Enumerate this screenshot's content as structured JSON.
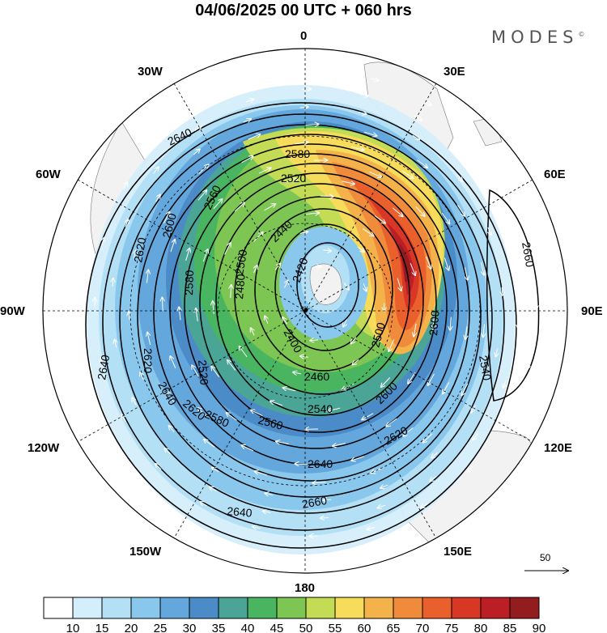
{
  "title": "04/06/2025  00 UTC  + 060 hrs",
  "brand": "MODES",
  "brand_mark": "©",
  "lon_labels": {
    "n": "0",
    "ne": "30E",
    "e1": "60E",
    "e": "90E",
    "e2": "120E",
    "se": "150E",
    "s": "180",
    "sw": "150W",
    "w2": "120W",
    "w": "90W",
    "w1": "60W",
    "nw": "30W"
  },
  "contour_labels": [
    "2640",
    "2580",
    "2520",
    "2560",
    "2600",
    "2620",
    "2500",
    "2440",
    "2420",
    "2480",
    "2580",
    "2620",
    "2640",
    "2400",
    "2520",
    "2460",
    "2500",
    "2600",
    "2640",
    "2620",
    "2580",
    "2540",
    "2560",
    "2600",
    "2620",
    "2640",
    "2640",
    "2660",
    "2660",
    "2540"
  ],
  "vector_scale": "50",
  "colorbar": {
    "ticks": [
      "10",
      "15",
      "20",
      "25",
      "30",
      "35",
      "40",
      "45",
      "50",
      "55",
      "60",
      "65",
      "70",
      "75",
      "80",
      "85",
      "90"
    ],
    "colors": [
      "#ffffff",
      "#d4eefb",
      "#b4e0f6",
      "#8ac7ec",
      "#63a7dc",
      "#4a8bc8",
      "#4aa596",
      "#49b561",
      "#7dc653",
      "#c4dc55",
      "#f6dc5a",
      "#f4b24b",
      "#f08b3b",
      "#e9602d",
      "#d83726",
      "#bb1f25",
      "#931c1f"
    ]
  },
  "colors": {
    "land": "#f2f2f2",
    "contour": "#000000",
    "vectors": "#ffffff"
  }
}
